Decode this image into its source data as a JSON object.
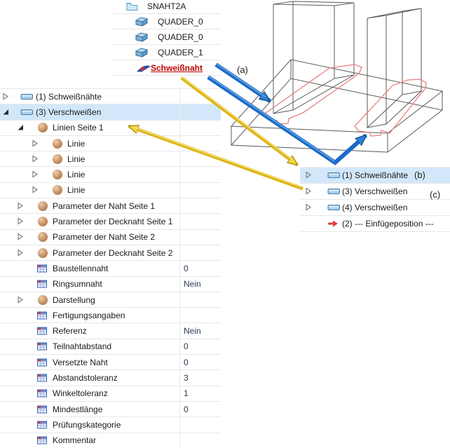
{
  "top_tree": {
    "items": [
      {
        "icon": "folder",
        "label": "SNAHT2A",
        "indent": 0,
        "red": false
      },
      {
        "icon": "box",
        "label": "QUADER_0",
        "indent": 1,
        "red": false
      },
      {
        "icon": "box",
        "label": "QUADER_0",
        "indent": 1,
        "red": false
      },
      {
        "icon": "box",
        "label": "QUADER_1",
        "indent": 1,
        "red": false
      },
      {
        "icon": "weld",
        "label": "Schweißnaht",
        "indent": 1,
        "red": true
      }
    ]
  },
  "left_grid": {
    "rows": [
      {
        "lvl": 0,
        "exp": "c",
        "icon": "slab",
        "label": "(1) Schweißnähte",
        "value": "",
        "sel": false
      },
      {
        "lvl": 0,
        "exp": "e",
        "icon": "slab",
        "label": "(3) Verschweißen",
        "value": "",
        "sel": true
      },
      {
        "lvl": 1,
        "exp": "e",
        "icon": "sphere",
        "label": "Linien Seite 1",
        "value": "",
        "sel": false
      },
      {
        "lvl": 2,
        "exp": "c",
        "icon": "sphere",
        "label": "Linie",
        "value": "",
        "sel": false
      },
      {
        "lvl": 2,
        "exp": "c",
        "icon": "sphere",
        "label": "Linie",
        "value": "",
        "sel": false
      },
      {
        "lvl": 2,
        "exp": "c",
        "icon": "sphere",
        "label": "Linie",
        "value": "",
        "sel": false
      },
      {
        "lvl": 2,
        "exp": "c",
        "icon": "sphere",
        "label": "Linie",
        "value": "",
        "sel": false
      },
      {
        "lvl": 1,
        "exp": "c",
        "icon": "sphere",
        "label": "Parameter der Naht Seite 1",
        "value": "",
        "sel": false
      },
      {
        "lvl": 1,
        "exp": "c",
        "icon": "sphere",
        "label": "Parameter der Decknaht Seite 1",
        "value": "",
        "sel": false
      },
      {
        "lvl": 1,
        "exp": "c",
        "icon": "sphere",
        "label": "Parameter der Naht Seite 2",
        "value": "",
        "sel": false
      },
      {
        "lvl": 1,
        "exp": "c",
        "icon": "sphere",
        "label": "Parameter der Decknaht Seite 2",
        "value": "",
        "sel": false
      },
      {
        "lvl": 1,
        "exp": null,
        "icon": "grid",
        "label": "Baustellennaht",
        "value": "0",
        "sel": false
      },
      {
        "lvl": 1,
        "exp": null,
        "icon": "grid",
        "label": "Ringsumnaht",
        "value": "Nein",
        "sel": false
      },
      {
        "lvl": 1,
        "exp": "c",
        "icon": "sphere",
        "label": "Darstellung",
        "value": "",
        "sel": false
      },
      {
        "lvl": 1,
        "exp": null,
        "icon": "grid",
        "label": "Fertigungsangaben",
        "value": "",
        "sel": false
      },
      {
        "lvl": 1,
        "exp": null,
        "icon": "grid",
        "label": "Referenz",
        "value": "Nein",
        "sel": false
      },
      {
        "lvl": 1,
        "exp": null,
        "icon": "grid",
        "label": "Teilnahtabstand",
        "value": "0",
        "sel": false
      },
      {
        "lvl": 1,
        "exp": null,
        "icon": "grid",
        "label": "Versetzte Naht",
        "value": "0",
        "sel": false
      },
      {
        "lvl": 1,
        "exp": null,
        "icon": "grid",
        "label": "Abstandstoleranz",
        "value": "3",
        "sel": false
      },
      {
        "lvl": 1,
        "exp": null,
        "icon": "grid",
        "label": "Winkeltoleranz",
        "value": "1",
        "sel": false
      },
      {
        "lvl": 1,
        "exp": null,
        "icon": "grid",
        "label": "Mindestlänge",
        "value": "0",
        "sel": false
      },
      {
        "lvl": 1,
        "exp": null,
        "icon": "grid",
        "label": "Prüfungskategorie",
        "value": "",
        "sel": false
      },
      {
        "lvl": 1,
        "exp": null,
        "icon": "grid",
        "label": "Kommentar",
        "value": "",
        "sel": false
      }
    ]
  },
  "right_tree": {
    "rows": [
      {
        "exp": "c",
        "icon": "slab",
        "label": "(1) Schweißnähte",
        "sel": true
      },
      {
        "exp": "c",
        "icon": "slab",
        "label": "(3) Verschweißen",
        "sel": false
      },
      {
        "exp": "c",
        "icon": "slab",
        "label": "(4) Verschweißen",
        "sel": false
      },
      {
        "exp": null,
        "icon": "redarrow",
        "label": "(2) --- Einfügeposition ---",
        "sel": false
      }
    ]
  },
  "annotations": {
    "a": "(a)",
    "b": "(b)",
    "c": "(c)"
  },
  "colors": {
    "arrow_blue": "#1a6bc7",
    "arrow_blue_head": "#2f7fd0",
    "arrow_blue_dark": "#0e4f96",
    "arrow_yellow": "#dcb51a",
    "arrow_yellow_head": "#f2d63f",
    "arrow_yellow_dark": "#a8880a",
    "weld_seam": "#e88080",
    "wireframe": "#5a5a5a",
    "selection": "#d2e8fa",
    "link_red": "#c00000"
  }
}
